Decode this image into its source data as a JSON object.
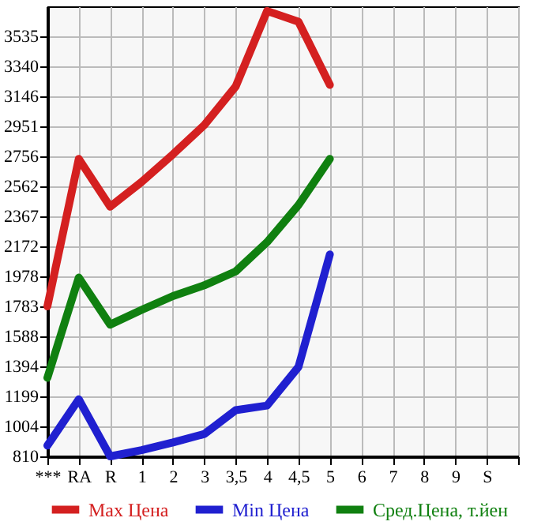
{
  "chart_data": {
    "type": "line",
    "categories": [
      "***",
      "RA",
      "R",
      "1",
      "2",
      "3",
      "3,5",
      "4",
      "4,5",
      "5",
      "6",
      "7",
      "8",
      "9",
      "S",
      null
    ],
    "series": [
      {
        "name": "Max Цена",
        "color": "#d42020",
        "values": [
          1783,
          2740,
          2430,
          2590,
          2770,
          2960,
          3210,
          3700,
          3630,
          3220,
          null,
          null,
          null,
          null,
          null,
          null
        ]
      },
      {
        "name": "Min Цена",
        "color": "#2020d0",
        "values": [
          880,
          1180,
          810,
          850,
          900,
          955,
          1110,
          1140,
          1390,
          2120,
          null,
          null,
          null,
          null,
          null,
          null
        ]
      },
      {
        "name": "Сред.Цена, т.йен",
        "color": "#108010",
        "values": [
          1320,
          1970,
          1665,
          1760,
          1850,
          1920,
          2010,
          2200,
          2440,
          2740,
          null,
          null,
          null,
          null,
          null,
          null
        ]
      }
    ],
    "ylim": [
      810,
      3730
    ],
    "yticks": [
      810,
      1004,
      1199,
      1394,
      1588,
      1783,
      1978,
      2172,
      2367,
      2562,
      2756,
      2951,
      3146,
      3340,
      3535
    ],
    "grid": true,
    "legend": "bottom",
    "marker": "none",
    "line_style": "solid"
  }
}
